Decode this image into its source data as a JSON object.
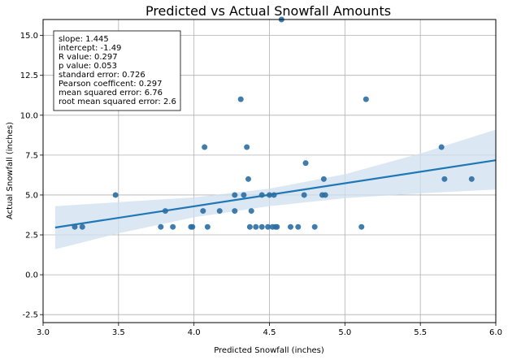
{
  "chart_data": {
    "type": "scatter",
    "title": "Predicted vs Actual Snowfall Amounts",
    "xlabel": "Predicted Snowfall (inches)",
    "ylabel": "Actual Snowfall (inches)",
    "xlim": [
      3.0,
      6.0
    ],
    "ylim": [
      -3.0,
      16.0
    ],
    "x_ticks": [
      "3.0",
      "3.5",
      "4.0",
      "4.5",
      "5.0",
      "5.5",
      "6.0"
    ],
    "y_ticks": [
      "-2.5",
      "0.0",
      "2.5",
      "5.0",
      "7.5",
      "10.0",
      "12.5",
      "15.0"
    ],
    "grid": true,
    "stats_box": [
      "slope: 1.445",
      "intercept: -1.49",
      "R value: 0.297",
      "p value: 0.053",
      "standard error: 0.726",
      "Pearson coefficent: 0.297",
      "mean squared error: 6.76",
      "root mean squared error: 2.6"
    ],
    "regression": {
      "slope": 1.445,
      "intercept": -1.49,
      "x_range": [
        3.08,
        6.0
      ]
    },
    "confidence_band": {
      "x": [
        3.08,
        3.5,
        4.0,
        4.5,
        5.0,
        5.5,
        6.0
      ],
      "lower": [
        1.6,
        2.6,
        3.6,
        4.3,
        4.8,
        5.1,
        5.35
      ],
      "upper": [
        4.3,
        4.55,
        4.85,
        5.4,
        6.3,
        7.6,
        9.1
      ]
    },
    "colors": {
      "points": "#2b6ea3",
      "line": "#1f77b4",
      "band": "#cfe0f0",
      "grid": "#b0b0b0"
    },
    "points": [
      {
        "x": 3.21,
        "y": 3.0
      },
      {
        "x": 3.26,
        "y": 3.0
      },
      {
        "x": 3.48,
        "y": 5.0
      },
      {
        "x": 3.78,
        "y": 3.0
      },
      {
        "x": 3.81,
        "y": 4.0
      },
      {
        "x": 3.86,
        "y": 3.0
      },
      {
        "x": 3.98,
        "y": 3.0
      },
      {
        "x": 3.99,
        "y": 3.0
      },
      {
        "x": 4.06,
        "y": 4.0
      },
      {
        "x": 4.07,
        "y": 8.0
      },
      {
        "x": 4.09,
        "y": 3.0
      },
      {
        "x": 4.17,
        "y": 4.0
      },
      {
        "x": 4.27,
        "y": 4.0
      },
      {
        "x": 4.27,
        "y": 5.0
      },
      {
        "x": 4.31,
        "y": 11.0
      },
      {
        "x": 4.33,
        "y": 5.0
      },
      {
        "x": 4.35,
        "y": 8.0
      },
      {
        "x": 4.36,
        "y": 6.0
      },
      {
        "x": 4.37,
        "y": 3.0
      },
      {
        "x": 4.38,
        "y": 4.0
      },
      {
        "x": 4.41,
        "y": 3.0
      },
      {
        "x": 4.45,
        "y": 3.0
      },
      {
        "x": 4.45,
        "y": 5.0
      },
      {
        "x": 4.49,
        "y": 3.0
      },
      {
        "x": 4.5,
        "y": 5.0
      },
      {
        "x": 4.52,
        "y": 3.0
      },
      {
        "x": 4.53,
        "y": 5.0
      },
      {
        "x": 4.54,
        "y": 3.0
      },
      {
        "x": 4.55,
        "y": 3.0
      },
      {
        "x": 4.58,
        "y": 16.0
      },
      {
        "x": 4.64,
        "y": 3.0
      },
      {
        "x": 4.69,
        "y": 3.0
      },
      {
        "x": 4.73,
        "y": 5.0
      },
      {
        "x": 4.74,
        "y": 7.0
      },
      {
        "x": 4.8,
        "y": 3.0
      },
      {
        "x": 4.85,
        "y": 5.0
      },
      {
        "x": 4.86,
        "y": 6.0
      },
      {
        "x": 4.87,
        "y": 5.0
      },
      {
        "x": 5.11,
        "y": 3.0
      },
      {
        "x": 5.14,
        "y": 11.0
      },
      {
        "x": 5.64,
        "y": 8.0
      },
      {
        "x": 5.66,
        "y": 6.0
      },
      {
        "x": 5.84,
        "y": 6.0
      }
    ]
  }
}
